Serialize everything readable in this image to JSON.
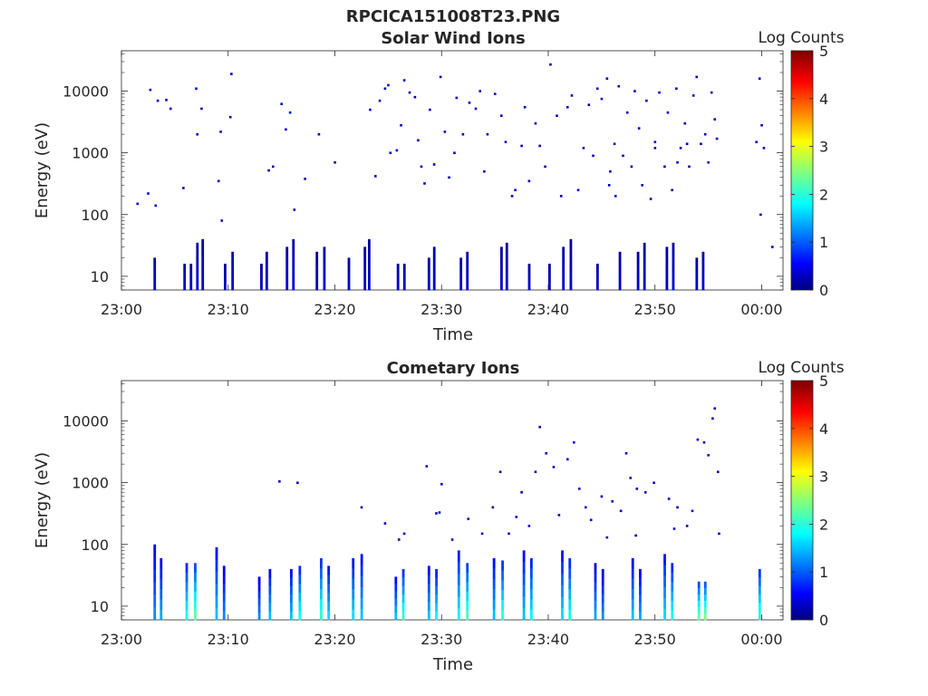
{
  "figure_title": "RPCICA151008T23.PNG",
  "chart_data": [
    {
      "type": "heatmap",
      "title": "Solar Wind Ions",
      "xlabel": "Time",
      "ylabel": "Energy (eV)",
      "x_ticks": [
        "23:00",
        "23:10",
        "23:20",
        "23:30",
        "23:40",
        "23:50",
        "00:00"
      ],
      "x_range_minutes": [
        0,
        62
      ],
      "y_scale": "log",
      "y_range": [
        6,
        45000
      ],
      "y_ticks": [
        10,
        100,
        1000,
        10000
      ],
      "y_tick_labels": [
        "10",
        "100",
        "1000",
        "10000"
      ],
      "colorbar": {
        "label": "Log Counts",
        "range": [
          0,
          5
        ],
        "ticks": [
          "0",
          "1",
          "2",
          "3",
          "4",
          "5"
        ],
        "colormap": "jet"
      },
      "bands": [
        {
          "t": 3.0,
          "e_max": 20,
          "v": 0.3
        },
        {
          "t": 5.8,
          "e_max": 16,
          "v": 0.3
        },
        {
          "t": 6.4,
          "e_max": 16,
          "v": 0.3
        },
        {
          "t": 7.0,
          "e_max": 35,
          "v": 0.3
        },
        {
          "t": 7.5,
          "e_max": 40,
          "v": 0.3
        },
        {
          "t": 9.6,
          "e_max": 16,
          "v": 0.3
        },
        {
          "t": 10.3,
          "e_max": 25,
          "v": 0.3
        },
        {
          "t": 13.0,
          "e_max": 16,
          "v": 0.3
        },
        {
          "t": 13.5,
          "e_max": 25,
          "v": 0.3
        },
        {
          "t": 15.4,
          "e_max": 30,
          "v": 0.3
        },
        {
          "t": 16.0,
          "e_max": 40,
          "v": 0.3
        },
        {
          "t": 18.2,
          "e_max": 25,
          "v": 0.3
        },
        {
          "t": 18.9,
          "e_max": 30,
          "v": 0.3
        },
        {
          "t": 21.2,
          "e_max": 20,
          "v": 0.3
        },
        {
          "t": 22.7,
          "e_max": 30,
          "v": 0.3
        },
        {
          "t": 23.1,
          "e_max": 40,
          "v": 0.3
        },
        {
          "t": 25.8,
          "e_max": 16,
          "v": 0.3
        },
        {
          "t": 26.4,
          "e_max": 16,
          "v": 0.3
        },
        {
          "t": 28.7,
          "e_max": 20,
          "v": 0.3
        },
        {
          "t": 29.2,
          "e_max": 30,
          "v": 0.3
        },
        {
          "t": 31.7,
          "e_max": 20,
          "v": 0.3
        },
        {
          "t": 32.3,
          "e_max": 25,
          "v": 0.3
        },
        {
          "t": 35.5,
          "e_max": 30,
          "v": 0.3
        },
        {
          "t": 36.0,
          "e_max": 35,
          "v": 0.3
        },
        {
          "t": 38.1,
          "e_max": 16,
          "v": 0.3
        },
        {
          "t": 40.0,
          "e_max": 16,
          "v": 0.3
        },
        {
          "t": 41.3,
          "e_max": 30,
          "v": 0.3
        },
        {
          "t": 42.0,
          "e_max": 40,
          "v": 0.3
        },
        {
          "t": 44.5,
          "e_max": 16,
          "v": 0.3
        },
        {
          "t": 46.6,
          "e_max": 25,
          "v": 0.3
        },
        {
          "t": 48.3,
          "e_max": 25,
          "v": 0.3
        },
        {
          "t": 48.9,
          "e_max": 35,
          "v": 0.3
        },
        {
          "t": 51.0,
          "e_max": 30,
          "v": 0.3
        },
        {
          "t": 51.6,
          "e_max": 35,
          "v": 0.3
        },
        {
          "t": 53.8,
          "e_max": 20,
          "v": 0.3
        },
        {
          "t": 54.4,
          "e_max": 25,
          "v": 0.3
        }
      ],
      "points": [
        [
          1.5,
          150
        ],
        [
          2.5,
          220
        ],
        [
          2.7,
          10500
        ],
        [
          3.4,
          7000
        ],
        [
          4.2,
          7200
        ],
        [
          4.6,
          5200
        ],
        [
          3.2,
          140
        ],
        [
          5.8,
          270
        ],
        [
          7.0,
          11000
        ],
        [
          7.1,
          2000
        ],
        [
          7.5,
          5200
        ],
        [
          9.1,
          350
        ],
        [
          9.3,
          2200
        ],
        [
          9.4,
          80
        ],
        [
          10.3,
          19000
        ],
        [
          10.2,
          3800
        ],
        [
          13.8,
          520
        ],
        [
          14.2,
          600
        ],
        [
          15.0,
          6200
        ],
        [
          15.4,
          2400
        ],
        [
          15.8,
          4500
        ],
        [
          16.2,
          120
        ],
        [
          17.2,
          380
        ],
        [
          18.5,
          2000
        ],
        [
          20.0,
          700
        ],
        [
          23.3,
          5000
        ],
        [
          23.8,
          420
        ],
        [
          24.2,
          7000
        ],
        [
          24.7,
          11000
        ],
        [
          25.0,
          12500
        ],
        [
          25.2,
          1000
        ],
        [
          25.8,
          1100
        ],
        [
          26.2,
          2800
        ],
        [
          26.5,
          15000
        ],
        [
          27.0,
          9500
        ],
        [
          27.5,
          8000
        ],
        [
          27.8,
          1600
        ],
        [
          28.1,
          600
        ],
        [
          28.4,
          320
        ],
        [
          28.9,
          5000
        ],
        [
          29.3,
          650
        ],
        [
          29.9,
          17000
        ],
        [
          30.3,
          2200
        ],
        [
          30.7,
          400
        ],
        [
          31.2,
          1000
        ],
        [
          31.4,
          7800
        ],
        [
          32.0,
          2000
        ],
        [
          32.6,
          6500
        ],
        [
          33.2,
          5200
        ],
        [
          33.6,
          10000
        ],
        [
          34.0,
          500
        ],
        [
          34.3,
          2000
        ],
        [
          35.0,
          9000
        ],
        [
          35.6,
          4000
        ],
        [
          36.0,
          1500
        ],
        [
          36.6,
          200
        ],
        [
          36.9,
          250
        ],
        [
          37.5,
          1300
        ],
        [
          37.8,
          5500
        ],
        [
          38.2,
          350
        ],
        [
          38.8,
          3000
        ],
        [
          39.2,
          1300
        ],
        [
          39.7,
          600
        ],
        [
          40.2,
          27000
        ],
        [
          40.8,
          4000
        ],
        [
          41.2,
          200
        ],
        [
          41.8,
          5500
        ],
        [
          42.2,
          8500
        ],
        [
          42.8,
          250
        ],
        [
          43.3,
          1200
        ],
        [
          43.8,
          6000
        ],
        [
          44.2,
          900
        ],
        [
          44.6,
          11000
        ],
        [
          45.0,
          7500
        ],
        [
          45.5,
          16000
        ],
        [
          45.8,
          500
        ],
        [
          46.2,
          1400
        ],
        [
          46.6,
          12000
        ],
        [
          47.0,
          900
        ],
        [
          47.4,
          4500
        ],
        [
          47.8,
          600
        ],
        [
          48.1,
          10000
        ],
        [
          48.5,
          2500
        ],
        [
          48.8,
          300
        ],
        [
          49.2,
          7000
        ],
        [
          49.6,
          180
        ],
        [
          50.0,
          1500
        ],
        [
          50.4,
          9500
        ],
        [
          50.9,
          600
        ],
        [
          51.2,
          4500
        ],
        [
          51.6,
          250
        ],
        [
          52.0,
          11000
        ],
        [
          52.4,
          1200
        ],
        [
          52.8,
          3000
        ],
        [
          53.2,
          600
        ],
        [
          53.6,
          8500
        ],
        [
          53.9,
          17000
        ],
        [
          54.3,
          1400
        ],
        [
          54.7,
          2000
        ],
        [
          55.0,
          700
        ],
        [
          55.3,
          9500
        ],
        [
          55.6,
          3500
        ],
        [
          55.8,
          1700
        ],
        [
          59.5,
          1500
        ],
        [
          59.8,
          16000
        ],
        [
          60.0,
          2800
        ],
        [
          60.2,
          1200
        ],
        [
          59.9,
          100
        ],
        [
          61.0,
          30
        ],
        [
          50.0,
          1200
        ],
        [
          53.0,
          1400
        ],
        [
          52.1,
          700
        ],
        [
          45.7,
          300
        ],
        [
          46.3,
          200
        ]
      ]
    },
    {
      "type": "heatmap",
      "title": "Cometary Ions",
      "xlabel": "Time",
      "ylabel": "Energy (eV)",
      "x_ticks": [
        "23:00",
        "23:10",
        "23:20",
        "23:30",
        "23:40",
        "23:50",
        "00:00"
      ],
      "x_range_minutes": [
        0,
        62
      ],
      "y_scale": "log",
      "y_range": [
        6,
        45000
      ],
      "y_ticks": [
        10,
        100,
        1000,
        10000
      ],
      "y_tick_labels": [
        "10",
        "100",
        "1000",
        "10000"
      ],
      "colorbar": {
        "label": "Log Counts",
        "range": [
          0,
          5
        ],
        "ticks": [
          "0",
          "1",
          "2",
          "3",
          "4",
          "5"
        ],
        "colormap": "jet"
      },
      "bands": [
        {
          "t": 3.0,
          "e_max": 100,
          "v": 1.0
        },
        {
          "t": 3.6,
          "e_max": 60,
          "v": 1.1
        },
        {
          "t": 6.0,
          "e_max": 50,
          "v": 1.5
        },
        {
          "t": 6.8,
          "e_max": 50,
          "v": 1.8
        },
        {
          "t": 8.8,
          "e_max": 90,
          "v": 1.2
        },
        {
          "t": 9.5,
          "e_max": 45,
          "v": 1.0
        },
        {
          "t": 12.8,
          "e_max": 30,
          "v": 1.0
        },
        {
          "t": 13.8,
          "e_max": 40,
          "v": 1.2
        },
        {
          "t": 15.8,
          "e_max": 40,
          "v": 1.2
        },
        {
          "t": 16.6,
          "e_max": 45,
          "v": 1.5
        },
        {
          "t": 18.6,
          "e_max": 60,
          "v": 1.6
        },
        {
          "t": 19.3,
          "e_max": 45,
          "v": 1.3
        },
        {
          "t": 21.6,
          "e_max": 60,
          "v": 1.3
        },
        {
          "t": 22.4,
          "e_max": 70,
          "v": 1.2
        },
        {
          "t": 25.6,
          "e_max": 30,
          "v": 1.2
        },
        {
          "t": 26.3,
          "e_max": 40,
          "v": 1.6
        },
        {
          "t": 28.7,
          "e_max": 45,
          "v": 1.2
        },
        {
          "t": 29.4,
          "e_max": 40,
          "v": 1.4
        },
        {
          "t": 31.5,
          "e_max": 80,
          "v": 1.4
        },
        {
          "t": 32.3,
          "e_max": 50,
          "v": 1.7
        },
        {
          "t": 34.8,
          "e_max": 60,
          "v": 1.2
        },
        {
          "t": 35.6,
          "e_max": 55,
          "v": 1.6
        },
        {
          "t": 37.6,
          "e_max": 80,
          "v": 1.2
        },
        {
          "t": 38.3,
          "e_max": 60,
          "v": 1.4
        },
        {
          "t": 41.2,
          "e_max": 80,
          "v": 1.3
        },
        {
          "t": 41.9,
          "e_max": 60,
          "v": 1.5
        },
        {
          "t": 44.3,
          "e_max": 50,
          "v": 1.1
        },
        {
          "t": 45.0,
          "e_max": 40,
          "v": 1.0
        },
        {
          "t": 47.8,
          "e_max": 60,
          "v": 1.2
        },
        {
          "t": 48.5,
          "e_max": 40,
          "v": 1.1
        },
        {
          "t": 50.8,
          "e_max": 70,
          "v": 1.3
        },
        {
          "t": 51.5,
          "e_max": 50,
          "v": 1.5
        },
        {
          "t": 54.0,
          "e_max": 25,
          "v": 1.8
        },
        {
          "t": 54.6,
          "e_max": 25,
          "v": 1.9
        },
        {
          "t": 59.7,
          "e_max": 40,
          "v": 1.6
        }
      ],
      "points": [
        [
          14.8,
          1050
        ],
        [
          16.5,
          1000
        ],
        [
          22.5,
          400
        ],
        [
          24.7,
          220
        ],
        [
          26.0,
          120
        ],
        [
          26.5,
          150
        ],
        [
          28.6,
          1850
        ],
        [
          29.5,
          320
        ],
        [
          29.8,
          330
        ],
        [
          30.0,
          950
        ],
        [
          31.0,
          120
        ],
        [
          32.5,
          260
        ],
        [
          33.8,
          150
        ],
        [
          34.8,
          400
        ],
        [
          35.5,
          1500
        ],
        [
          36.3,
          150
        ],
        [
          37.0,
          280
        ],
        [
          37.5,
          700
        ],
        [
          38.2,
          200
        ],
        [
          38.8,
          1500
        ],
        [
          39.2,
          8000
        ],
        [
          39.8,
          3000
        ],
        [
          40.5,
          1800
        ],
        [
          41.0,
          300
        ],
        [
          41.8,
          2400
        ],
        [
          42.4,
          4500
        ],
        [
          42.9,
          800
        ],
        [
          43.5,
          400
        ],
        [
          44.0,
          250
        ],
        [
          45.0,
          600
        ],
        [
          46.0,
          500
        ],
        [
          46.8,
          350
        ],
        [
          47.3,
          3000
        ],
        [
          47.7,
          1200
        ],
        [
          48.3,
          800
        ],
        [
          49.1,
          700
        ],
        [
          49.9,
          1000
        ],
        [
          51.3,
          550
        ],
        [
          52.1,
          400
        ],
        [
          53.5,
          350
        ],
        [
          54.0,
          5000
        ],
        [
          54.6,
          4500
        ],
        [
          55.0,
          2800
        ],
        [
          55.4,
          11000
        ],
        [
          55.6,
          16000
        ],
        [
          55.9,
          1500
        ],
        [
          56.0,
          150
        ],
        [
          45.5,
          130
        ],
        [
          48.2,
          140
        ],
        [
          51.8,
          180
        ],
        [
          53.0,
          200
        ]
      ]
    }
  ]
}
